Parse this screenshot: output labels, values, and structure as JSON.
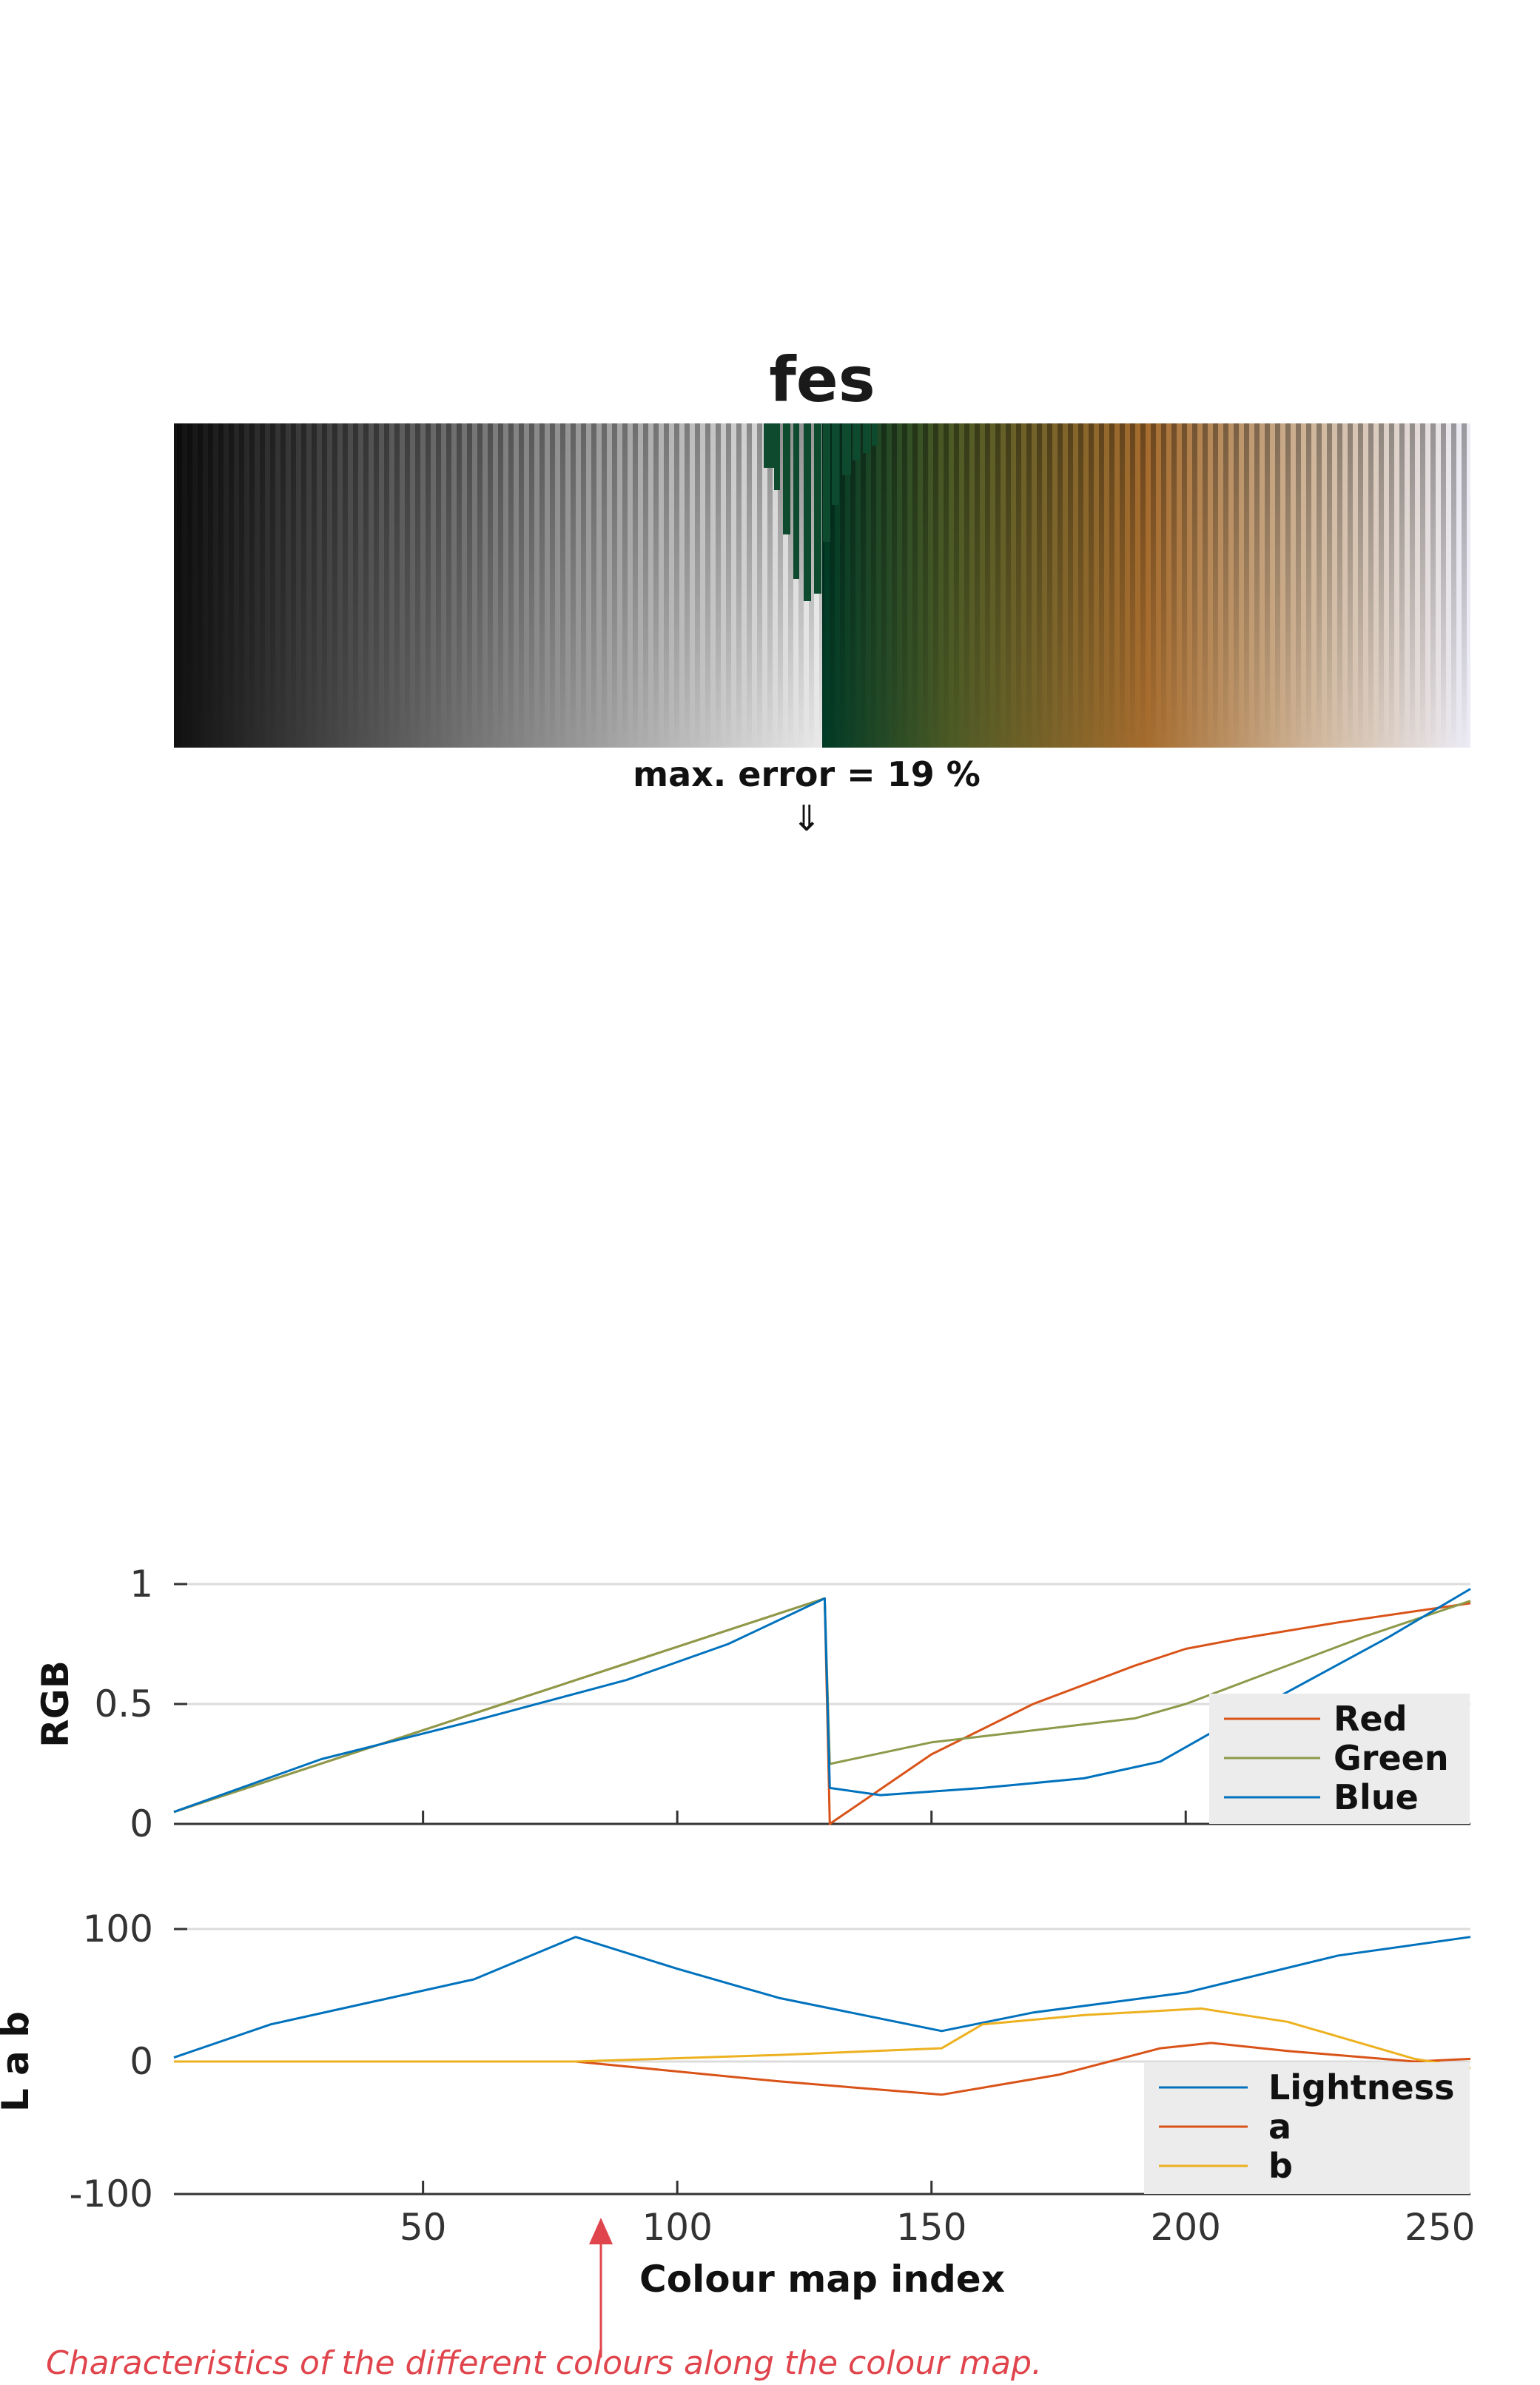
{
  "colormap": {
    "title": "fes",
    "max_error_label": "max. error =  19 %",
    "arrow_glyph": "⇓",
    "error_index": 128
  },
  "chart_data": [
    {
      "type": "line",
      "ylabel": "RGB",
      "xlim": [
        1,
        256
      ],
      "ylim": [
        0,
        1
      ],
      "yticks": [
        0,
        0.5,
        1
      ],
      "ytick_labels": [
        "0",
        "0.5",
        "1"
      ],
      "grid": "horizontal",
      "legend_position": "bottom-right",
      "series": [
        {
          "name": "Red",
          "color": "#d95319",
          "x": [
            1,
            129,
            130,
            150,
            170,
            190,
            200,
            210,
            230,
            256
          ],
          "y": [
            0.05,
            0.94,
            0.0,
            0.29,
            0.5,
            0.66,
            0.73,
            0.77,
            0.84,
            0.92
          ]
        },
        {
          "name": "Green",
          "color": "#8c9a4a",
          "x": [
            1,
            129,
            130,
            150,
            170,
            190,
            200,
            215,
            235,
            256
          ],
          "y": [
            0.05,
            0.94,
            0.25,
            0.34,
            0.39,
            0.44,
            0.5,
            0.62,
            0.78,
            0.93
          ]
        },
        {
          "name": "Blue",
          "color": "#0072bd",
          "x": [
            1,
            30,
            60,
            90,
            110,
            129,
            130,
            140,
            160,
            180,
            195,
            205,
            220,
            240,
            256
          ],
          "y": [
            0.05,
            0.27,
            0.43,
            0.6,
            0.75,
            0.94,
            0.15,
            0.12,
            0.15,
            0.19,
            0.26,
            0.38,
            0.55,
            0.78,
            0.98
          ]
        }
      ]
    },
    {
      "type": "line",
      "xlabel": "Colour map index",
      "ylabel": "L a b",
      "xlim": [
        1,
        256
      ],
      "ylim": [
        -100,
        100
      ],
      "xticks": [
        50,
        100,
        150,
        200,
        250
      ],
      "xtick_labels": [
        "50",
        "100",
        "150",
        "200",
        "250"
      ],
      "yticks": [
        -100,
        0,
        100
      ],
      "ytick_labels": [
        "-100",
        "0",
        "100"
      ],
      "grid": "horizontal",
      "legend_position": "bottom-right",
      "series": [
        {
          "name": "Lightness",
          "color": "#0072bd",
          "x": [
            1,
            20,
            40,
            60,
            80,
            100,
            120,
            152,
            170,
            200,
            230,
            256
          ],
          "y": [
            3,
            28,
            45,
            62,
            94,
            70,
            48,
            23,
            37,
            52,
            80,
            94
          ]
        },
        {
          "name": "a",
          "color": "#d95319",
          "x": [
            1,
            80,
            120,
            152,
            175,
            195,
            205,
            220,
            245,
            256
          ],
          "y": [
            0,
            0,
            -15,
            -25,
            -10,
            10,
            14,
            8,
            0,
            2
          ]
        },
        {
          "name": "b",
          "color": "#edb120",
          "x": [
            1,
            80,
            120,
            152,
            160,
            180,
            203,
            220,
            245,
            256
          ],
          "y": [
            0,
            0,
            5,
            10,
            28,
            35,
            40,
            30,
            2,
            -5
          ]
        }
      ]
    }
  ],
  "annotation": {
    "text": "Characteristics of the different colours along the colour map.",
    "color": "#e0454d"
  }
}
